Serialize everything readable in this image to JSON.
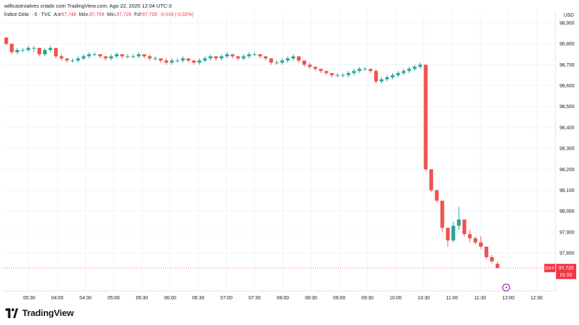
{
  "header": {
    "credit": "willicastroalves criado com TradingView.com, Ago 22, 2025 12:04 UTC-3",
    "symbol": "Índice Dólar · 5 · TVC",
    "open_label": "Abr",
    "open_value": "97,748",
    "high_label": "Máx.",
    "high_value": "97,759",
    "low_label": "Mín.",
    "low_value": "97,728",
    "close_label": "Fch",
    "close_value": "97,728",
    "change": "-0,018 (-0,02%)"
  },
  "price_scale": {
    "currency": "USD",
    "ticks": [
      "98,900",
      "98,800",
      "98,700",
      "98,600",
      "98,500",
      "98,400",
      "98,300",
      "98,200",
      "98,100",
      "98,000",
      "97,900",
      "97,800"
    ],
    "last_badge_symbol": "DXY",
    "last_badge_value": "97,728",
    "last_badge_countdown": "01:00"
  },
  "time_scale": {
    "ticks": [
      "05:30",
      "04:00",
      "04:30",
      "05:00",
      "05:30",
      "06:00",
      "06:30",
      "07:00",
      "07:30",
      "08:00",
      "08:30",
      "09:00",
      "09:30",
      "10:00",
      "10:30",
      "11:00",
      "11:30",
      "12:00",
      "12:30"
    ]
  },
  "branding": {
    "name": "TradingView"
  },
  "colors": {
    "up": "#26a69a",
    "down": "#ef5350",
    "badge": "#f23645",
    "grid": "#f0f3fa",
    "text": "#131722",
    "alert": "#9c27b0"
  },
  "chart_data": {
    "type": "candlestick",
    "title": "Índice Dólar · 5 · TVC",
    "ylabel": "USD",
    "ylim": [
      97.68,
      98.98
    ],
    "y_ticks": [
      98.9,
      98.8,
      98.7,
      98.6,
      98.5,
      98.4,
      98.3,
      98.2,
      98.1,
      98.0,
      97.9,
      97.8
    ],
    "x_ticks": [
      "05:30",
      "04:00",
      "04:30",
      "05:00",
      "05:30",
      "06:00",
      "06:30",
      "07:00",
      "07:30",
      "08:00",
      "08:30",
      "09:00",
      "09:30",
      "10:00",
      "10:30",
      "11:00",
      "11:30",
      "12:00",
      "12:30"
    ],
    "grid": true,
    "candles_ohlc": [
      [
        98.83,
        98.83,
        98.79,
        98.8
      ],
      [
        98.8,
        98.8,
        98.75,
        98.76
      ],
      [
        98.76,
        98.78,
        98.75,
        98.77
      ],
      [
        98.77,
        98.78,
        98.76,
        98.77
      ],
      [
        98.77,
        98.79,
        98.76,
        98.78
      ],
      [
        98.78,
        98.79,
        98.76,
        98.78
      ],
      [
        98.78,
        98.78,
        98.74,
        98.75
      ],
      [
        98.75,
        98.78,
        98.74,
        98.77
      ],
      [
        98.77,
        98.79,
        98.76,
        98.78
      ],
      [
        98.78,
        98.78,
        98.73,
        98.74
      ],
      [
        98.74,
        98.75,
        98.72,
        98.73
      ],
      [
        98.73,
        98.73,
        98.71,
        98.72
      ],
      [
        98.72,
        98.73,
        98.71,
        98.72
      ],
      [
        98.72,
        98.74,
        98.71,
        98.73
      ],
      [
        98.73,
        98.75,
        98.72,
        98.74
      ],
      [
        98.74,
        98.76,
        98.73,
        98.75
      ],
      [
        98.75,
        98.76,
        98.74,
        98.75
      ],
      [
        98.75,
        98.75,
        98.73,
        98.74
      ],
      [
        98.74,
        98.74,
        98.72,
        98.73
      ],
      [
        98.73,
        98.75,
        98.72,
        98.74
      ],
      [
        98.74,
        98.76,
        98.73,
        98.75
      ],
      [
        98.75,
        98.75,
        98.73,
        98.74
      ],
      [
        98.74,
        98.75,
        98.73,
        98.74
      ],
      [
        98.74,
        98.75,
        98.73,
        98.74
      ],
      [
        98.74,
        98.76,
        98.73,
        98.75
      ],
      [
        98.75,
        98.75,
        98.73,
        98.74
      ],
      [
        98.74,
        98.75,
        98.72,
        98.73
      ],
      [
        98.73,
        98.74,
        98.72,
        98.73
      ],
      [
        98.73,
        98.73,
        98.71,
        98.72
      ],
      [
        98.72,
        98.73,
        98.7,
        98.71
      ],
      [
        98.71,
        98.73,
        98.7,
        98.72
      ],
      [
        98.72,
        98.73,
        98.71,
        98.72
      ],
      [
        98.72,
        98.74,
        98.71,
        98.73
      ],
      [
        98.73,
        98.73,
        98.71,
        98.72
      ],
      [
        98.72,
        98.72,
        98.7,
        98.71
      ],
      [
        98.71,
        98.73,
        98.7,
        98.72
      ],
      [
        98.72,
        98.74,
        98.71,
        98.73
      ],
      [
        98.73,
        98.75,
        98.72,
        98.74
      ],
      [
        98.74,
        98.74,
        98.72,
        98.73
      ],
      [
        98.73,
        98.75,
        98.72,
        98.74
      ],
      [
        98.74,
        98.76,
        98.73,
        98.75
      ],
      [
        98.75,
        98.75,
        98.73,
        98.74
      ],
      [
        98.74,
        98.74,
        98.72,
        98.73
      ],
      [
        98.73,
        98.75,
        98.72,
        98.74
      ],
      [
        98.74,
        98.76,
        98.73,
        98.75
      ],
      [
        98.75,
        98.76,
        98.74,
        98.75
      ],
      [
        98.75,
        98.75,
        98.73,
        98.74
      ],
      [
        98.74,
        98.74,
        98.72,
        98.73
      ],
      [
        98.73,
        98.73,
        98.7,
        98.71
      ],
      [
        98.71,
        98.72,
        98.7,
        98.71
      ],
      [
        98.71,
        98.73,
        98.7,
        98.72
      ],
      [
        98.72,
        98.74,
        98.71,
        98.73
      ],
      [
        98.73,
        98.75,
        98.72,
        98.74
      ],
      [
        98.74,
        98.74,
        98.71,
        98.72
      ],
      [
        98.72,
        98.72,
        98.69,
        98.7
      ],
      [
        98.7,
        98.71,
        98.68,
        98.69
      ],
      [
        98.69,
        98.69,
        98.67,
        98.68
      ],
      [
        98.68,
        98.68,
        98.66,
        98.67
      ],
      [
        98.67,
        98.67,
        98.65,
        98.66
      ],
      [
        98.66,
        98.66,
        98.64,
        98.65
      ],
      [
        98.65,
        98.66,
        98.64,
        98.65
      ],
      [
        98.65,
        98.66,
        98.64,
        98.65
      ],
      [
        98.65,
        98.67,
        98.64,
        98.66
      ],
      [
        98.66,
        98.68,
        98.65,
        98.67
      ],
      [
        98.67,
        98.69,
        98.66,
        98.68
      ],
      [
        98.68,
        98.69,
        98.67,
        98.68
      ],
      [
        98.68,
        98.68,
        98.66,
        98.67
      ],
      [
        98.67,
        98.68,
        98.61,
        98.62
      ],
      [
        98.62,
        98.64,
        98.61,
        98.63
      ],
      [
        98.63,
        98.65,
        98.62,
        98.64
      ],
      [
        98.64,
        98.66,
        98.63,
        98.65
      ],
      [
        98.65,
        98.67,
        98.64,
        98.66
      ],
      [
        98.66,
        98.68,
        98.65,
        98.67
      ],
      [
        98.67,
        98.69,
        98.66,
        98.68
      ],
      [
        98.68,
        98.7,
        98.67,
        98.69
      ],
      [
        98.69,
        98.71,
        98.68,
        98.7
      ],
      [
        98.7,
        98.7,
        98.19,
        98.2
      ],
      [
        98.2,
        98.2,
        98.09,
        98.1
      ],
      [
        98.1,
        98.1,
        98.04,
        98.05
      ],
      [
        98.05,
        98.05,
        97.9,
        97.92
      ],
      [
        97.92,
        97.92,
        97.83,
        97.86
      ],
      [
        97.86,
        97.95,
        97.85,
        97.93
      ],
      [
        97.93,
        98.02,
        97.91,
        97.96
      ],
      [
        97.96,
        97.96,
        97.88,
        97.89
      ],
      [
        97.89,
        97.91,
        97.85,
        97.87
      ],
      [
        97.87,
        97.88,
        97.84,
        97.85
      ],
      [
        97.85,
        97.88,
        97.82,
        97.83
      ],
      [
        97.83,
        97.83,
        97.77,
        97.78
      ],
      [
        97.78,
        97.79,
        97.75,
        97.76
      ],
      [
        97.748,
        97.759,
        97.728,
        97.728
      ]
    ],
    "last_price": 97.728
  }
}
